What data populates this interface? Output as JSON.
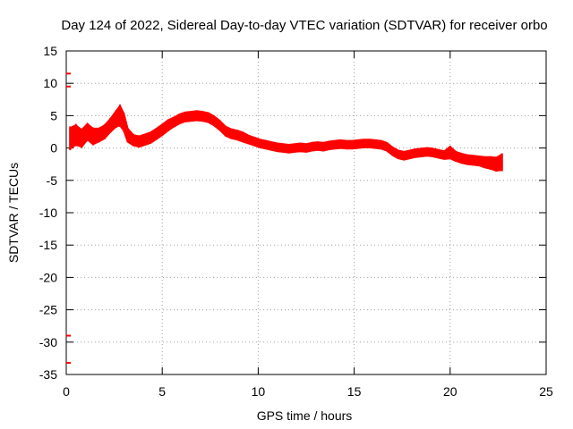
{
  "chart_data": {
    "type": "scatter",
    "title": "Day 124 of 2022, Sidereal Day-to-day VTEC variation (SDTVAR) for receiver orbo",
    "xlabel": "GPS time / hours",
    "ylabel": "SDTVAR / TECUs",
    "xlim": [
      0,
      25
    ],
    "ylim": [
      -35,
      15
    ],
    "xticks": [
      0,
      5,
      10,
      15,
      20,
      25
    ],
    "yticks": [
      15,
      10,
      5,
      0,
      -5,
      -10,
      -15,
      -20,
      -25,
      -30,
      -35
    ],
    "grid": true,
    "grid_style": "dotted",
    "series": [
      {
        "name": "SDTVAR",
        "color": "#ff0000",
        "x": [
          0.2,
          0.5,
          0.8,
          1.1,
          1.4,
          1.7,
          2.0,
          2.3,
          2.6,
          2.8,
          3.0,
          3.2,
          3.5,
          3.8,
          4.1,
          4.4,
          4.7,
          5.0,
          5.3,
          5.6,
          5.9,
          6.2,
          6.5,
          6.8,
          7.1,
          7.4,
          7.7,
          8.0,
          8.3,
          8.6,
          8.9,
          9.2,
          9.5,
          9.8,
          10.1,
          10.4,
          10.7,
          11.0,
          11.3,
          11.6,
          11.9,
          12.2,
          12.5,
          12.8,
          13.1,
          13.4,
          13.7,
          14.0,
          14.3,
          14.6,
          14.9,
          15.2,
          15.5,
          15.8,
          16.1,
          16.4,
          16.7,
          17.0,
          17.3,
          17.6,
          17.9,
          18.2,
          18.5,
          18.8,
          19.1,
          19.4,
          19.7,
          20.0,
          20.3,
          20.6,
          20.9,
          21.2,
          21.5,
          21.8,
          22.1,
          22.4,
          22.7
        ],
        "y": [
          1.5,
          2.0,
          1.5,
          2.5,
          1.8,
          2.0,
          2.5,
          3.5,
          4.5,
          5.0,
          4.0,
          2.0,
          1.2,
          1.0,
          1.3,
          1.6,
          2.2,
          2.8,
          3.5,
          4.0,
          4.5,
          4.8,
          4.9,
          5.0,
          4.9,
          4.7,
          4.2,
          3.5,
          2.6,
          2.2,
          2.0,
          1.7,
          1.3,
          1.0,
          0.7,
          0.5,
          0.3,
          0.1,
          0.0,
          -0.1,
          0.0,
          0.1,
          0.0,
          0.2,
          0.3,
          0.2,
          0.4,
          0.5,
          0.6,
          0.5,
          0.5,
          0.6,
          0.7,
          0.7,
          0.6,
          0.5,
          0.2,
          -0.5,
          -1.0,
          -1.2,
          -1.0,
          -0.8,
          -0.7,
          -0.6,
          -0.7,
          -0.9,
          -1.1,
          -0.7,
          -1.3,
          -1.6,
          -1.8,
          -1.9,
          -2.0,
          -2.2,
          -2.3,
          -2.5,
          -2.2
        ],
        "spread": [
          1.6,
          1.5,
          1.3,
          1.2,
          1.2,
          1.0,
          1.0,
          1.0,
          1.2,
          1.5,
          1.3,
          1.0,
          0.8,
          0.8,
          0.8,
          0.8,
          0.8,
          0.8,
          0.8,
          0.7,
          0.7,
          0.7,
          0.7,
          0.7,
          0.7,
          0.7,
          0.7,
          0.7,
          0.7,
          0.7,
          0.7,
          0.7,
          0.6,
          0.6,
          0.6,
          0.6,
          0.6,
          0.6,
          0.6,
          0.6,
          0.6,
          0.6,
          0.6,
          0.6,
          0.6,
          0.6,
          0.6,
          0.6,
          0.6,
          0.6,
          0.6,
          0.6,
          0.6,
          0.6,
          0.6,
          0.6,
          0.6,
          0.6,
          0.6,
          0.6,
          0.6,
          0.6,
          0.6,
          0.6,
          0.6,
          0.6,
          0.6,
          0.9,
          0.7,
          0.7,
          0.7,
          0.7,
          0.7,
          0.8,
          0.9,
          1.0,
          1.2
        ]
      },
      {
        "name": "outliers",
        "color": "#ff0000",
        "x": [
          0.0,
          0.0,
          0.0,
          0.0
        ],
        "y": [
          11.5,
          9.5,
          -29.0,
          -33.2
        ]
      }
    ]
  }
}
